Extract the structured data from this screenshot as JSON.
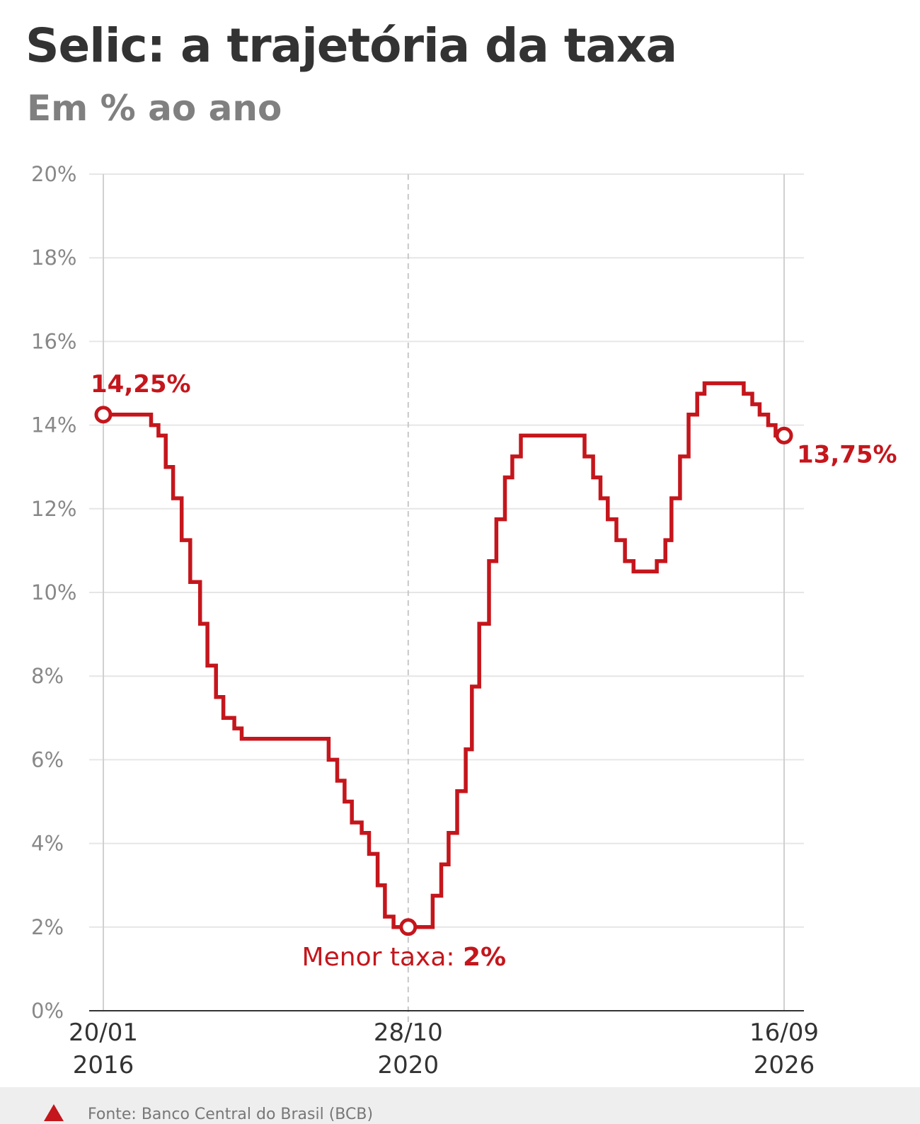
{
  "header": {
    "title": "Selic: a trajetória da taxa",
    "subtitle": "Em % ao ano"
  },
  "footer": {
    "source": "Fonte: Banco Central do Brasil (BCB)"
  },
  "colors": {
    "line": "#c4161c",
    "title": "#333333",
    "subtitle": "#808080",
    "grid": "#e6e6e6",
    "axis_text": "#888888"
  },
  "chart_data": {
    "type": "line",
    "step": true,
    "title": "Selic: a trajetória da taxa",
    "subtitle": "Em % ao ano",
    "ylim": [
      0,
      20
    ],
    "yticks": [
      0,
      2,
      4,
      6,
      8,
      10,
      12,
      14,
      16,
      18,
      20
    ],
    "ytick_labels": [
      "0%",
      "2%",
      "4%",
      "6%",
      "8%",
      "10%",
      "12%",
      "14%",
      "16%",
      "18%",
      "20%"
    ],
    "xlim": [
      "2016-01-20",
      "2026-09-16"
    ],
    "xtick_labels": [
      {
        "date": "2016-01-20",
        "line1": "20/01",
        "line2": "2016"
      },
      {
        "date": "2020-10-28",
        "line1": "28/10",
        "line2": "2020"
      },
      {
        "date": "2026-09-16",
        "line1": "16/09",
        "line2": "2026"
      }
    ],
    "grid": true,
    "series": [
      {
        "points": [
          [
            "2016-01-20",
            14.25
          ],
          [
            "2016-10-19",
            14.0
          ],
          [
            "2016-11-30",
            13.75
          ],
          [
            "2017-01-11",
            13.0
          ],
          [
            "2017-02-22",
            12.25
          ],
          [
            "2017-04-12",
            11.25
          ],
          [
            "2017-05-31",
            10.25
          ],
          [
            "2017-07-26",
            9.25
          ],
          [
            "2017-09-06",
            8.25
          ],
          [
            "2017-10-25",
            7.5
          ],
          [
            "2017-12-06",
            7.0
          ],
          [
            "2018-02-07",
            6.75
          ],
          [
            "2018-03-21",
            6.5
          ],
          [
            "2019-07-31",
            6.0
          ],
          [
            "2019-09-18",
            5.5
          ],
          [
            "2019-10-30",
            5.0
          ],
          [
            "2019-12-11",
            4.5
          ],
          [
            "2020-02-05",
            4.25
          ],
          [
            "2020-03-18",
            3.75
          ],
          [
            "2020-05-06",
            3.0
          ],
          [
            "2020-06-17",
            2.25
          ],
          [
            "2020-08-05",
            2.0
          ],
          [
            "2021-03-17",
            2.75
          ],
          [
            "2021-05-05",
            3.5
          ],
          [
            "2021-06-16",
            4.25
          ],
          [
            "2021-08-04",
            5.25
          ],
          [
            "2021-09-22",
            6.25
          ],
          [
            "2021-10-27",
            7.75
          ],
          [
            "2021-12-08",
            9.25
          ],
          [
            "2022-02-02",
            10.75
          ],
          [
            "2022-03-16",
            11.75
          ],
          [
            "2022-05-04",
            12.75
          ],
          [
            "2022-06-15",
            13.25
          ],
          [
            "2022-08-03",
            13.75
          ],
          [
            "2023-08-02",
            13.25
          ],
          [
            "2023-09-20",
            12.75
          ],
          [
            "2023-11-01",
            12.25
          ],
          [
            "2023-12-13",
            11.75
          ],
          [
            "2024-01-31",
            11.25
          ],
          [
            "2024-03-20",
            10.75
          ],
          [
            "2024-05-08",
            10.5
          ],
          [
            "2024-09-18",
            10.75
          ],
          [
            "2024-11-06",
            11.25
          ],
          [
            "2024-12-11",
            12.25
          ],
          [
            "2025-01-29",
            13.25
          ],
          [
            "2025-03-19",
            14.25
          ],
          [
            "2025-05-07",
            14.75
          ],
          [
            "2025-06-18",
            15.0
          ],
          [
            "2026-01-28",
            14.75
          ],
          [
            "2026-03-18",
            14.5
          ],
          [
            "2026-04-29",
            14.25
          ],
          [
            "2026-06-17",
            14.0
          ],
          [
            "2026-07-29",
            13.75
          ],
          [
            "2026-09-16",
            13.75
          ]
        ]
      }
    ],
    "reference_line": {
      "date": "2020-10-28",
      "style": "dashed"
    },
    "annotations": [
      {
        "id": "start",
        "date": "2016-01-20",
        "value": 14.25,
        "label": "14,25%",
        "position": "above"
      },
      {
        "id": "end",
        "date": "2026-09-16",
        "value": 13.75,
        "label": "13,75%",
        "position": "right"
      },
      {
        "id": "min",
        "date": "2020-10-28",
        "value": 2.0,
        "label_prefix": "Menor taxa: ",
        "label_value": "2%",
        "position": "below"
      }
    ]
  }
}
